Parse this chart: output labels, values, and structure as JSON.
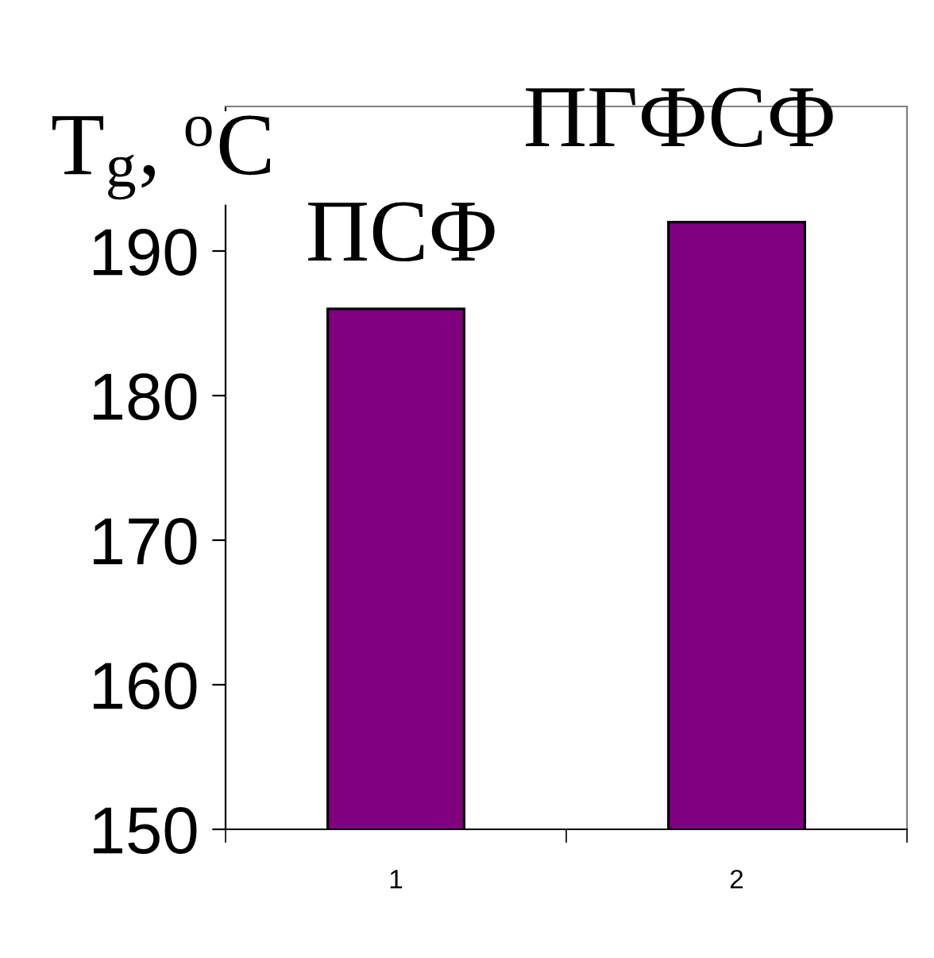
{
  "chart_data": {
    "type": "bar",
    "ylabel": "T$_{g}$, $^{o}$C",
    "categories": [
      "1",
      "2"
    ],
    "values": [
      186,
      192
    ],
    "color": "#800080",
    "ylim": [
      150,
      200
    ],
    "yticks": [
      150,
      160,
      170,
      180,
      190
    ],
    "annotations": [
      "ПСФ",
      "ПГФСФ"
    ]
  }
}
